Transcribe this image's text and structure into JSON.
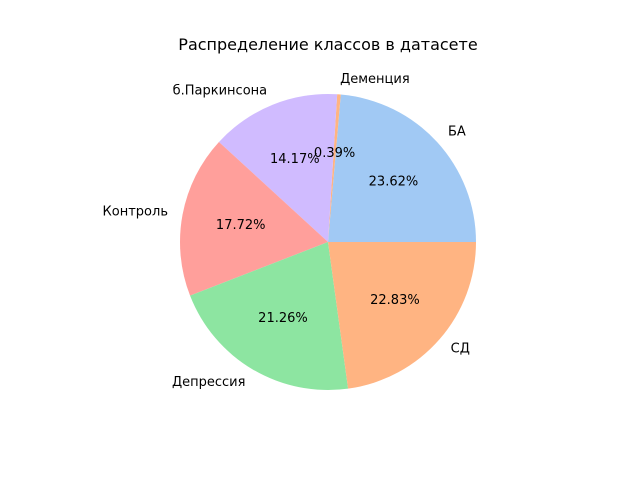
{
  "chart_data": {
    "type": "pie",
    "title": "Распределение классов в датасете",
    "categories": [
      "БА",
      "Деменция",
      "б.Паркинсона",
      "Контроль",
      "Депрессия",
      "СД"
    ],
    "values": [
      23.62,
      0.39,
      14.17,
      17.72,
      21.26,
      22.83
    ],
    "value_labels": [
      "23.62%",
      "0.39%",
      "14.17%",
      "17.72%",
      "21.26%",
      "22.83%"
    ],
    "colors": [
      "#a1c9f4",
      "#ffb482",
      "#cfbfff",
      "#ff9f9b",
      "#8de5a1",
      "#ffb482"
    ],
    "slice_colors": [
      "#a1c9f4",
      "#ffb482",
      "#d0bbff",
      "#ff9f9b",
      "#8de5a1",
      "#ffb482"
    ],
    "start_angle": 0,
    "direction": "counterclockwise",
    "legend": "none"
  }
}
